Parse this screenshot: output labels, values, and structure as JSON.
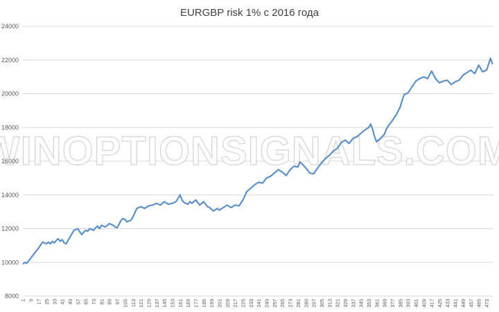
{
  "chart_data": {
    "type": "line",
    "title": "EURGBP risk 1% с 2016 года",
    "xlabel": "",
    "ylabel": "",
    "ylim": [
      8000,
      24000
    ],
    "yticks": [
      8000,
      10000,
      12000,
      14000,
      16000,
      18000,
      20000,
      22000,
      24000
    ],
    "xlim": [
      1,
      480
    ],
    "xticks": [
      1,
      9,
      17,
      25,
      33,
      41,
      49,
      57,
      65,
      73,
      81,
      89,
      97,
      105,
      113,
      121,
      129,
      137,
      145,
      153,
      161,
      169,
      177,
      185,
      193,
      201,
      209,
      217,
      225,
      233,
      241,
      249,
      257,
      265,
      273,
      281,
      289,
      297,
      305,
      313,
      321,
      329,
      337,
      345,
      353,
      361,
      369,
      377,
      385,
      393,
      401,
      409,
      417,
      425,
      433,
      441,
      449,
      457,
      465,
      473
    ],
    "grid": true,
    "legend": "none",
    "series_color": "#5b8fc7",
    "watermark": "WINOPTIONSIGNALS.COM",
    "series": [
      {
        "name": "",
        "x": [
          1,
          3,
          5,
          9,
          13,
          17,
          21,
          25,
          27,
          29,
          31,
          33,
          35,
          37,
          39,
          41,
          43,
          45,
          49,
          53,
          57,
          59,
          61,
          63,
          65,
          67,
          69,
          73,
          75,
          77,
          79,
          81,
          85,
          89,
          93,
          95,
          97,
          101,
          103,
          105,
          107,
          111,
          113,
          117,
          121,
          125,
          129,
          133,
          137,
          141,
          145,
          149,
          153,
          157,
          161,
          163,
          165,
          169,
          171,
          173,
          177,
          181,
          185,
          189,
          191,
          195,
          199,
          201,
          205,
          209,
          213,
          217,
          221,
          225,
          229,
          233,
          237,
          241,
          245,
          249,
          253,
          257,
          261,
          265,
          269,
          273,
          277,
          281,
          283,
          285,
          289,
          293,
          297,
          301,
          305,
          309,
          313,
          317,
          321,
          325,
          329,
          333,
          337,
          341,
          345,
          349,
          353,
          355,
          357,
          359,
          361,
          363,
          365,
          369,
          371,
          373,
          377,
          381,
          385,
          387,
          389,
          393,
          397,
          401,
          405,
          409,
          413,
          417,
          421,
          425,
          429,
          433,
          437,
          441,
          445,
          449,
          453,
          457,
          461,
          465,
          469,
          473,
          475,
          477,
          479
        ],
        "y": [
          9900,
          10000,
          9950,
          10250,
          10550,
          10850,
          11200,
          11100,
          11200,
          11100,
          11250,
          11150,
          11300,
          11400,
          11250,
          11350,
          11150,
          11100,
          11500,
          11900,
          12000,
          11800,
          11650,
          11800,
          11900,
          11850,
          12000,
          11900,
          12050,
          12150,
          12000,
          12200,
          12100,
          12300,
          12200,
          12100,
          12050,
          12500,
          12600,
          12550,
          12400,
          12500,
          12700,
          13200,
          13300,
          13200,
          13350,
          13400,
          13500,
          13400,
          13600,
          13450,
          13500,
          13600,
          14000,
          13700,
          13550,
          13450,
          13600,
          13500,
          13700,
          13400,
          13600,
          13300,
          13250,
          13050,
          13200,
          13100,
          13250,
          13400,
          13250,
          13400,
          13350,
          13700,
          14200,
          14400,
          14600,
          14750,
          14700,
          15000,
          15100,
          15300,
          15500,
          15350,
          15150,
          15500,
          15700,
          15650,
          15950,
          15850,
          15600,
          15300,
          15250,
          15600,
          15900,
          16150,
          16350,
          16600,
          16750,
          17100,
          17250,
          17050,
          17350,
          17450,
          17650,
          17850,
          18000,
          18200,
          17900,
          17450,
          17150,
          17250,
          17350,
          17600,
          17900,
          18100,
          18400,
          18750,
          19200,
          19600,
          19950,
          20050,
          20400,
          20750,
          20900,
          21000,
          20900,
          21350,
          20900,
          20650,
          20750,
          20800,
          20550,
          20700,
          20800,
          21100,
          21250,
          21400,
          21200,
          21700,
          21300,
          21400,
          21750,
          22100,
          21750
        ]
      }
    ]
  }
}
